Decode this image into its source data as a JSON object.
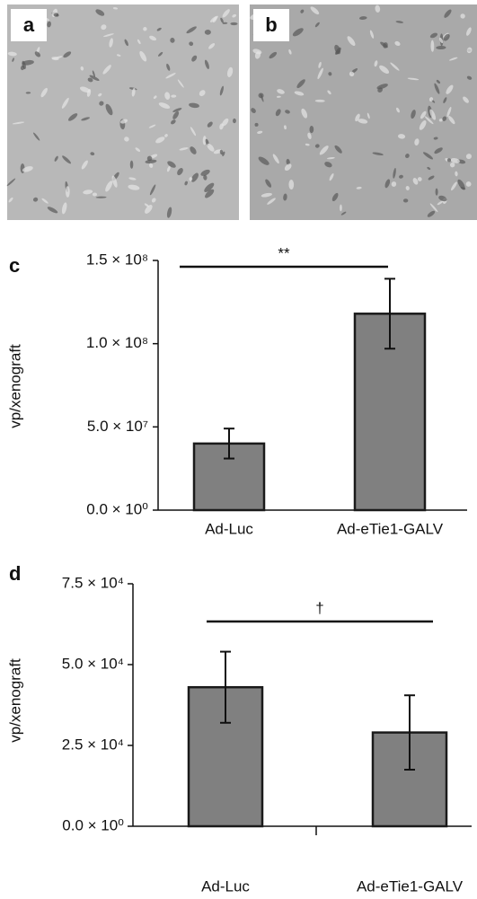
{
  "images": [
    {
      "label": "a"
    },
    {
      "label": "b"
    }
  ],
  "chart_data": [
    {
      "type": "bar",
      "panel": "c",
      "y_label": "vp/xenograft",
      "categories": [
        "Ad-Luc",
        "Ad-eTie1-GALV"
      ],
      "values": [
        40000000,
        118000000
      ],
      "errors": [
        9000000,
        21000000
      ],
      "color": "#808080",
      "annotation": "**",
      "ylim": [
        0,
        150000000
      ],
      "yticks": [
        {
          "value": 0,
          "label": "0.0 × 10⁰"
        },
        {
          "value": 50000000,
          "label": "5.0 × 10⁷"
        },
        {
          "value": 100000000,
          "label": "1.0 × 10⁸"
        },
        {
          "value": 150000000,
          "label": "1.5 × 10⁸"
        }
      ]
    },
    {
      "type": "bar",
      "panel": "d",
      "y_label": "vp/xenograft",
      "categories": [
        "Ad-Luc",
        "Ad-eTie1-GALV"
      ],
      "values": [
        43000,
        29000
      ],
      "errors": [
        11000,
        11500
      ],
      "color": "#808080",
      "annotation": "†",
      "ylim": [
        0,
        75000
      ],
      "yticks": [
        {
          "value": 0,
          "label": "0.0 × 10⁰"
        },
        {
          "value": 25000,
          "label": "2.5 × 10⁴"
        },
        {
          "value": 50000,
          "label": "5.0 × 10⁴"
        },
        {
          "value": 75000,
          "label": "7.5 × 10⁴"
        }
      ]
    }
  ]
}
